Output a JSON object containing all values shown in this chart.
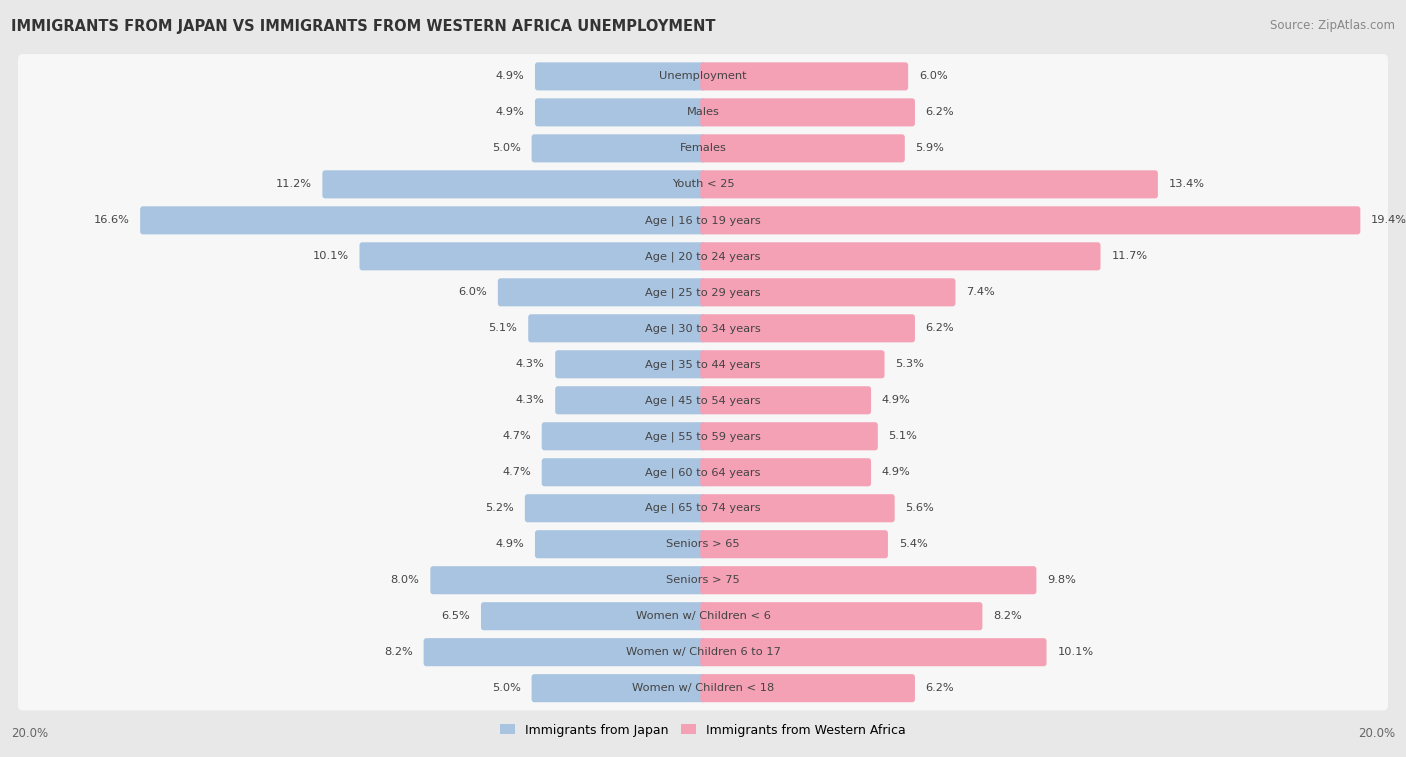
{
  "title": "IMMIGRANTS FROM JAPAN VS IMMIGRANTS FROM WESTERN AFRICA UNEMPLOYMENT",
  "source": "Source: ZipAtlas.com",
  "categories": [
    "Unemployment",
    "Males",
    "Females",
    "Youth < 25",
    "Age | 16 to 19 years",
    "Age | 20 to 24 years",
    "Age | 25 to 29 years",
    "Age | 30 to 34 years",
    "Age | 35 to 44 years",
    "Age | 45 to 54 years",
    "Age | 55 to 59 years",
    "Age | 60 to 64 years",
    "Age | 65 to 74 years",
    "Seniors > 65",
    "Seniors > 75",
    "Women w/ Children < 6",
    "Women w/ Children 6 to 17",
    "Women w/ Children < 18"
  ],
  "japan_values": [
    4.9,
    4.9,
    5.0,
    11.2,
    16.6,
    10.1,
    6.0,
    5.1,
    4.3,
    4.3,
    4.7,
    4.7,
    5.2,
    4.9,
    8.0,
    6.5,
    8.2,
    5.0
  ],
  "western_africa_values": [
    6.0,
    6.2,
    5.9,
    13.4,
    19.4,
    11.7,
    7.4,
    6.2,
    5.3,
    4.9,
    5.1,
    4.9,
    5.6,
    5.4,
    9.8,
    8.2,
    10.1,
    6.2
  ],
  "japan_color": "#a8c4e0",
  "western_africa_color": "#f4a0b5",
  "bar_height": 0.62,
  "xlim": 20.0,
  "background_color": "#e8e8e8",
  "row_bg_color": "#f7f7f7",
  "legend_japan": "Immigrants from Japan",
  "legend_western_africa": "Immigrants from Western Africa",
  "axis_label_left": "20.0%",
  "axis_label_right": "20.0%",
  "title_fontsize": 10.5,
  "source_fontsize": 8.5,
  "label_fontsize": 8.2,
  "value_fontsize": 8.2
}
